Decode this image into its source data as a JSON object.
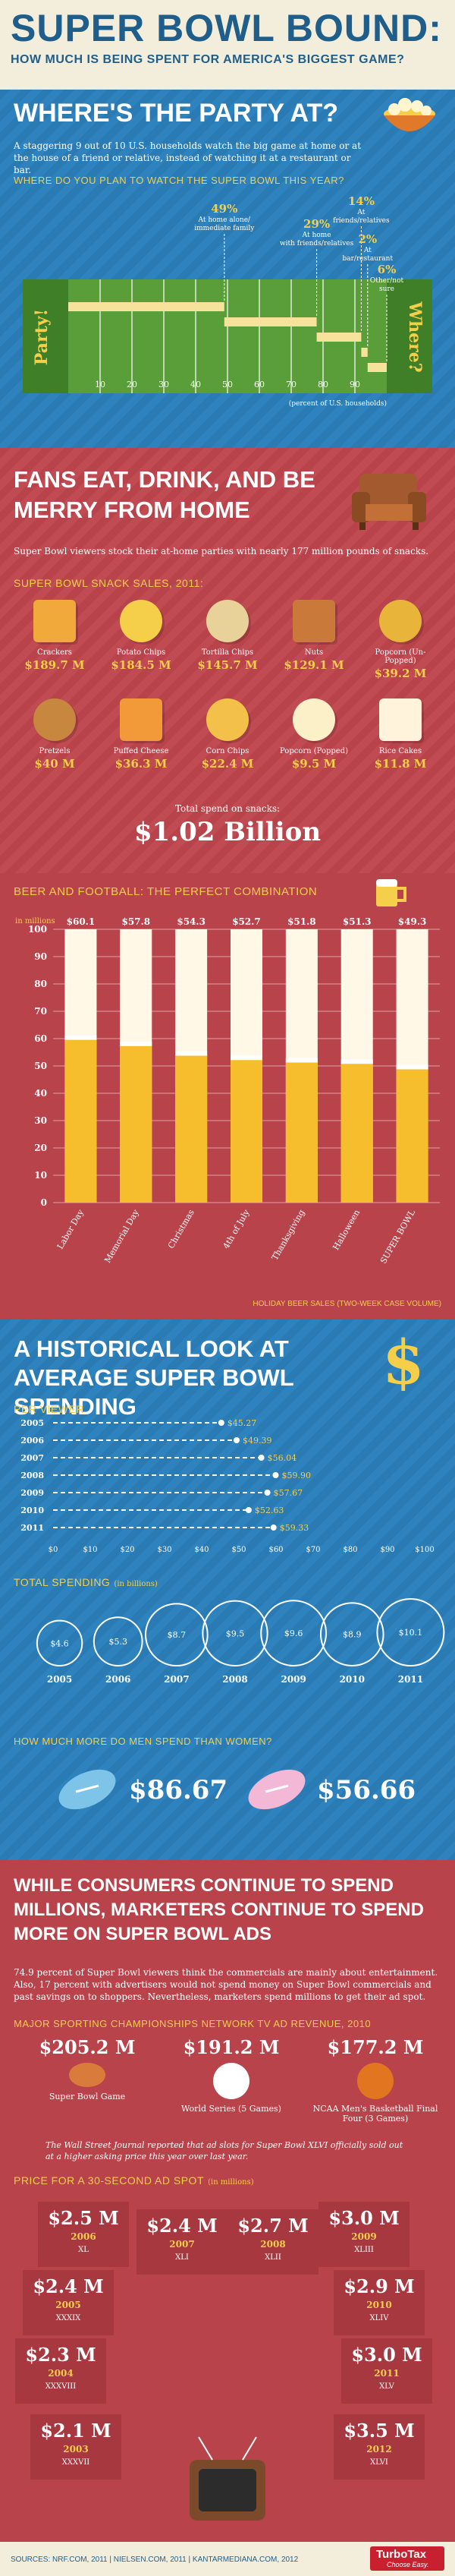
{
  "header": {
    "title": "SUPER BOWL BOUND:",
    "subtitle": "HOW MUCH IS BEING SPENT FOR AMERICA'S BIGGEST GAME?"
  },
  "party": {
    "title": "WHERE'S THE PARTY AT?",
    "body": "A staggering 9 out of 10 U.S. households watch the big game at home or at the house of a friend or relative, instead of watching it at a restaurant or bar.",
    "question": "WHERE DO YOU PLAN TO WATCH THE SUPER BOWL THIS YEAR?",
    "left_endzone": "Party!",
    "right_endzone": "Where?",
    "axis_note": "(percent of U.S. households)",
    "ticks": [
      "10",
      "20",
      "30",
      "40",
      "50",
      "60",
      "70",
      "80",
      "90"
    ]
  },
  "snacks": {
    "title": "FANS EAT, DRINK, AND BE MERRY FROM HOME",
    "body": "Super Bowl viewers stock their at-home parties with nearly 177 million pounds of snacks.",
    "sales_title": "SUPER BOWL SNACK SALES, 2011:",
    "items": [
      {
        "name": "Crackers",
        "value": "$189.7 M"
      },
      {
        "name": "Potato Chips",
        "value": "$184.5 M"
      },
      {
        "name": "Tortilla Chips",
        "value": "$145.7 M"
      },
      {
        "name": "Nuts",
        "value": "$129.1 M"
      },
      {
        "name": "Popcorn (Un-Popped)",
        "value": "$39.2 M"
      },
      {
        "name": "Pretzels",
        "value": "$40 M"
      },
      {
        "name": "Puffed Cheese",
        "value": "$36.3 M"
      },
      {
        "name": "Corn Chips",
        "value": "$22.4 M"
      },
      {
        "name": "Popcorn (Popped)",
        "value": "$9.5 M"
      },
      {
        "name": "Rice Cakes",
        "value": "$11.8 M"
      }
    ],
    "total_label": "Total spend on snacks:",
    "total_value": "$1.02 Billion"
  },
  "beer": {
    "title": "BEER AND FOOTBALL: THE PERFECT COMBINATION",
    "footnote": "HOLIDAY BEER SALES (TWO-WEEK CASE VOLUME)"
  },
  "history": {
    "title": "A HISTORICAL LOOK AT AVERAGE SUPER BOWL SPENDING",
    "per_viewer_title": "PER VIEWER",
    "total_title": "TOTAL SPENDING",
    "total_unit": "(in billions)",
    "men_women_title": "HOW MUCH MORE DO MEN SPEND THAN WOMEN?",
    "men_value": "$86.67",
    "women_value": "$56.66"
  },
  "ads": {
    "title": "WHILE CONSUMERS CONTINUE TO SPEND MILLIONS, MARKETERS CONTINUE TO SPEND MORE ON SUPER BOWL ADS",
    "body": "74.9 percent of Super Bowl viewers think the commercials are mainly about entertainment. Also, 17 percent with advertisers would not spend money on Super Bowl commercials and past savings on to shoppers. Nevertheless, marketers spend millions to get their ad spot.",
    "rev_title": "MAJOR SPORTING CHAMPIONSHIPS NETWORK TV AD REVENUE, 2010",
    "rev": [
      {
        "value": "$205.2 M",
        "label": "Super Bowl Game"
      },
      {
        "value": "$191.2 M",
        "label": "World Series (5 Games)"
      },
      {
        "value": "$177.2 M",
        "label": "NCAA Men's Basketball Final Four (3 Games)"
      }
    ],
    "wsj_note": "The Wall Street Journal reported that ad slots for Super Bowl XLVI officially sold out at a higher asking price this year over last year.",
    "spot_title": "PRICE FOR A 30-SECOND AD SPOT",
    "spot_unit": "(in millions)"
  },
  "footer": {
    "sources": "SOURCES: NRF.COM, 2011 | NIELSEN.COM, 2011 | KANTARMEDIANA.COM, 2012",
    "brand": "TurboTax",
    "tagline": "Choose Easy."
  },
  "chart_data": [
    {
      "type": "bar",
      "title": "WHERE DO YOU PLAN TO WATCH THE SUPER BOWL THIS YEAR?",
      "categories": [
        "At home alone/ immediate family",
        "At home with friends/relatives",
        "At friends/relatives",
        "At bar/restaurant",
        "Other/not sure"
      ],
      "values": [
        49,
        29,
        14,
        2,
        6
      ],
      "labels": [
        "49%",
        "29%",
        "14%",
        "2%",
        "6%"
      ],
      "xlabel": "(percent of U.S. households)",
      "xlim": [
        0,
        100
      ]
    },
    {
      "type": "bar",
      "title": "BEER AND FOOTBALL: THE PERFECT COMBINATION",
      "ylabel": "in millions",
      "categories": [
        "Labor Day",
        "Memorial Day",
        "Christmas",
        "4th of July",
        "Thanksgiving",
        "Halloween",
        "SUPER BOWL"
      ],
      "values": [
        60.1,
        57.8,
        54.3,
        52.7,
        51.8,
        51.3,
        49.3
      ],
      "labels": [
        "$60.1",
        "$57.8",
        "$54.3",
        "$52.7",
        "$51.8",
        "$51.3",
        "$49.3"
      ],
      "ylim": [
        0,
        100
      ],
      "yticks": [
        "0",
        "10",
        "20",
        "30",
        "40",
        "50",
        "60",
        "70",
        "80",
        "90",
        "100"
      ]
    },
    {
      "type": "line",
      "title": "PER VIEWER",
      "categories": [
        "2005",
        "2006",
        "2007",
        "2008",
        "2009",
        "2010",
        "2011"
      ],
      "values": [
        45.27,
        49.39,
        56.04,
        59.9,
        57.67,
        52.63,
        59.33
      ],
      "labels": [
        "$45.27",
        "$49.39",
        "$56.04",
        "$59.90",
        "$57.67",
        "$52.63",
        "$59.33"
      ],
      "xticks": [
        "$0",
        "$10",
        "$20",
        "$30",
        "$40",
        "$50",
        "$60",
        "$70",
        "$80",
        "$90",
        "$100"
      ],
      "xlim": [
        0,
        100
      ]
    },
    {
      "type": "scatter",
      "title": "TOTAL SPENDING",
      "categories": [
        "2005",
        "2006",
        "2007",
        "2008",
        "2009",
        "2010",
        "2011"
      ],
      "values": [
        4.6,
        5.3,
        8.7,
        9.5,
        9.6,
        8.9,
        10.1
      ],
      "labels": [
        "$4.6",
        "$5.3",
        "$8.7",
        "$9.5",
        "$9.6",
        "$8.9",
        "$10.1"
      ]
    },
    {
      "type": "bar",
      "title": "PRICE FOR A 30-SECOND AD SPOT",
      "categories": [
        "2006",
        "2007",
        "2008",
        "2009",
        "2005",
        "2010",
        "2004",
        "2011",
        "2003",
        "2012"
      ],
      "values": [
        2.5,
        2.4,
        2.7,
        3.0,
        2.4,
        2.9,
        2.3,
        3.0,
        2.1,
        3.5
      ],
      "labels": [
        "$2.5 M",
        "$2.4 M",
        "$2.7 M",
        "$3.0 M",
        "$2.4 M",
        "$2.9 M",
        "$2.3 M",
        "$3.0 M",
        "$2.1 M",
        "$3.5 M"
      ],
      "roman": [
        "XL",
        "XLI",
        "XLII",
        "XLIII",
        "XXXIX",
        "XLIV",
        "XXXVIII",
        "XLV",
        "XXXVII",
        "XLVI"
      ]
    }
  ]
}
